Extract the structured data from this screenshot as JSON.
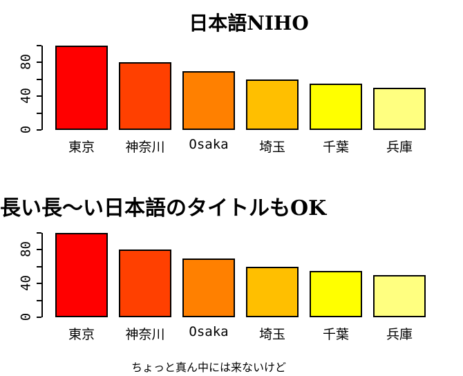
{
  "colors": {
    "background": "#FFFFFF",
    "axis": "#000000",
    "text": "#000000",
    "bar_border": "#000000"
  },
  "chart_data": [
    {
      "type": "bar",
      "title": "日本語NIHO",
      "title_align": "center",
      "categories": [
        "東京",
        "神奈川",
        "Osaka",
        "埼玉",
        "千葉",
        "兵庫"
      ],
      "values": [
        100,
        80,
        70,
        60,
        55,
        50
      ],
      "bar_colors": [
        "#FF0000",
        "#FF4000",
        "#FF8000",
        "#FFBF00",
        "#FFFF00",
        "#FFFF80"
      ],
      "xlabel": "",
      "ylabel": "",
      "ylim": [
        0,
        100
      ],
      "yticks": [
        0,
        20,
        40,
        60,
        80,
        100
      ],
      "ytick_labels": [
        "0",
        "",
        "40",
        "",
        "80",
        ""
      ],
      "grid": false,
      "legend": "none"
    },
    {
      "type": "bar",
      "title": "長い長〜い日本語のタイトルもOK",
      "title_align": "left",
      "subtitle": "ちょっと真ん中には来ないけど",
      "categories": [
        "東京",
        "神奈川",
        "Osaka",
        "埼玉",
        "千葉",
        "兵庫"
      ],
      "values": [
        100,
        80,
        70,
        60,
        55,
        50
      ],
      "bar_colors": [
        "#FF0000",
        "#FF4000",
        "#FF8000",
        "#FFBF00",
        "#FFFF00",
        "#FFFF80"
      ],
      "xlabel": "",
      "ylabel": "",
      "ylim": [
        0,
        100
      ],
      "yticks": [
        0,
        20,
        40,
        60,
        80,
        100
      ],
      "ytick_labels": [
        "0",
        "",
        "40",
        "",
        "80",
        ""
      ],
      "grid": false,
      "legend": "none"
    }
  ]
}
